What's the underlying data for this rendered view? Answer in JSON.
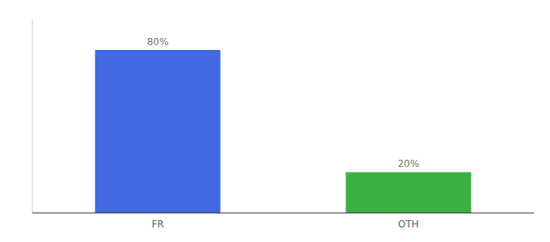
{
  "chart_data": {
    "type": "bar",
    "categories": [
      "FR",
      "OTH"
    ],
    "values": [
      80,
      20
    ],
    "value_labels": [
      "80%",
      "20%"
    ],
    "colors": [
      "#4169e1",
      "#3cb043"
    ],
    "ylim": [
      0,
      95
    ],
    "data_labels": true,
    "tick_labels": "x",
    "grid": false
  }
}
